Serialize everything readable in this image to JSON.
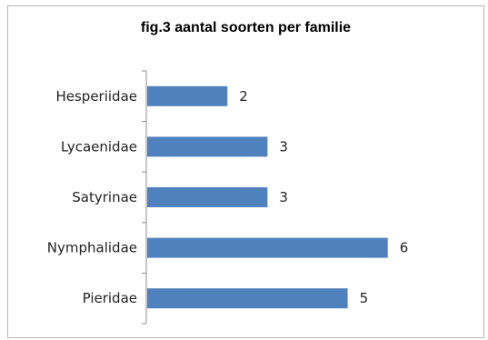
{
  "chart_data": {
    "type": "bar",
    "orientation": "horizontal",
    "title": "fig.3 aantal soorten per familie",
    "xlabel": "",
    "ylabel": "",
    "categories": [
      "Hesperiidae",
      "Lycaenidae",
      "Satyrinae",
      "Nymphalidae",
      "Pieridae"
    ],
    "values": [
      2,
      3,
      3,
      6,
      5
    ],
    "xlim": [
      0,
      6.8
    ],
    "grid": false,
    "legend": "none",
    "bar_color": "#4f81bd",
    "data_labels": true
  }
}
